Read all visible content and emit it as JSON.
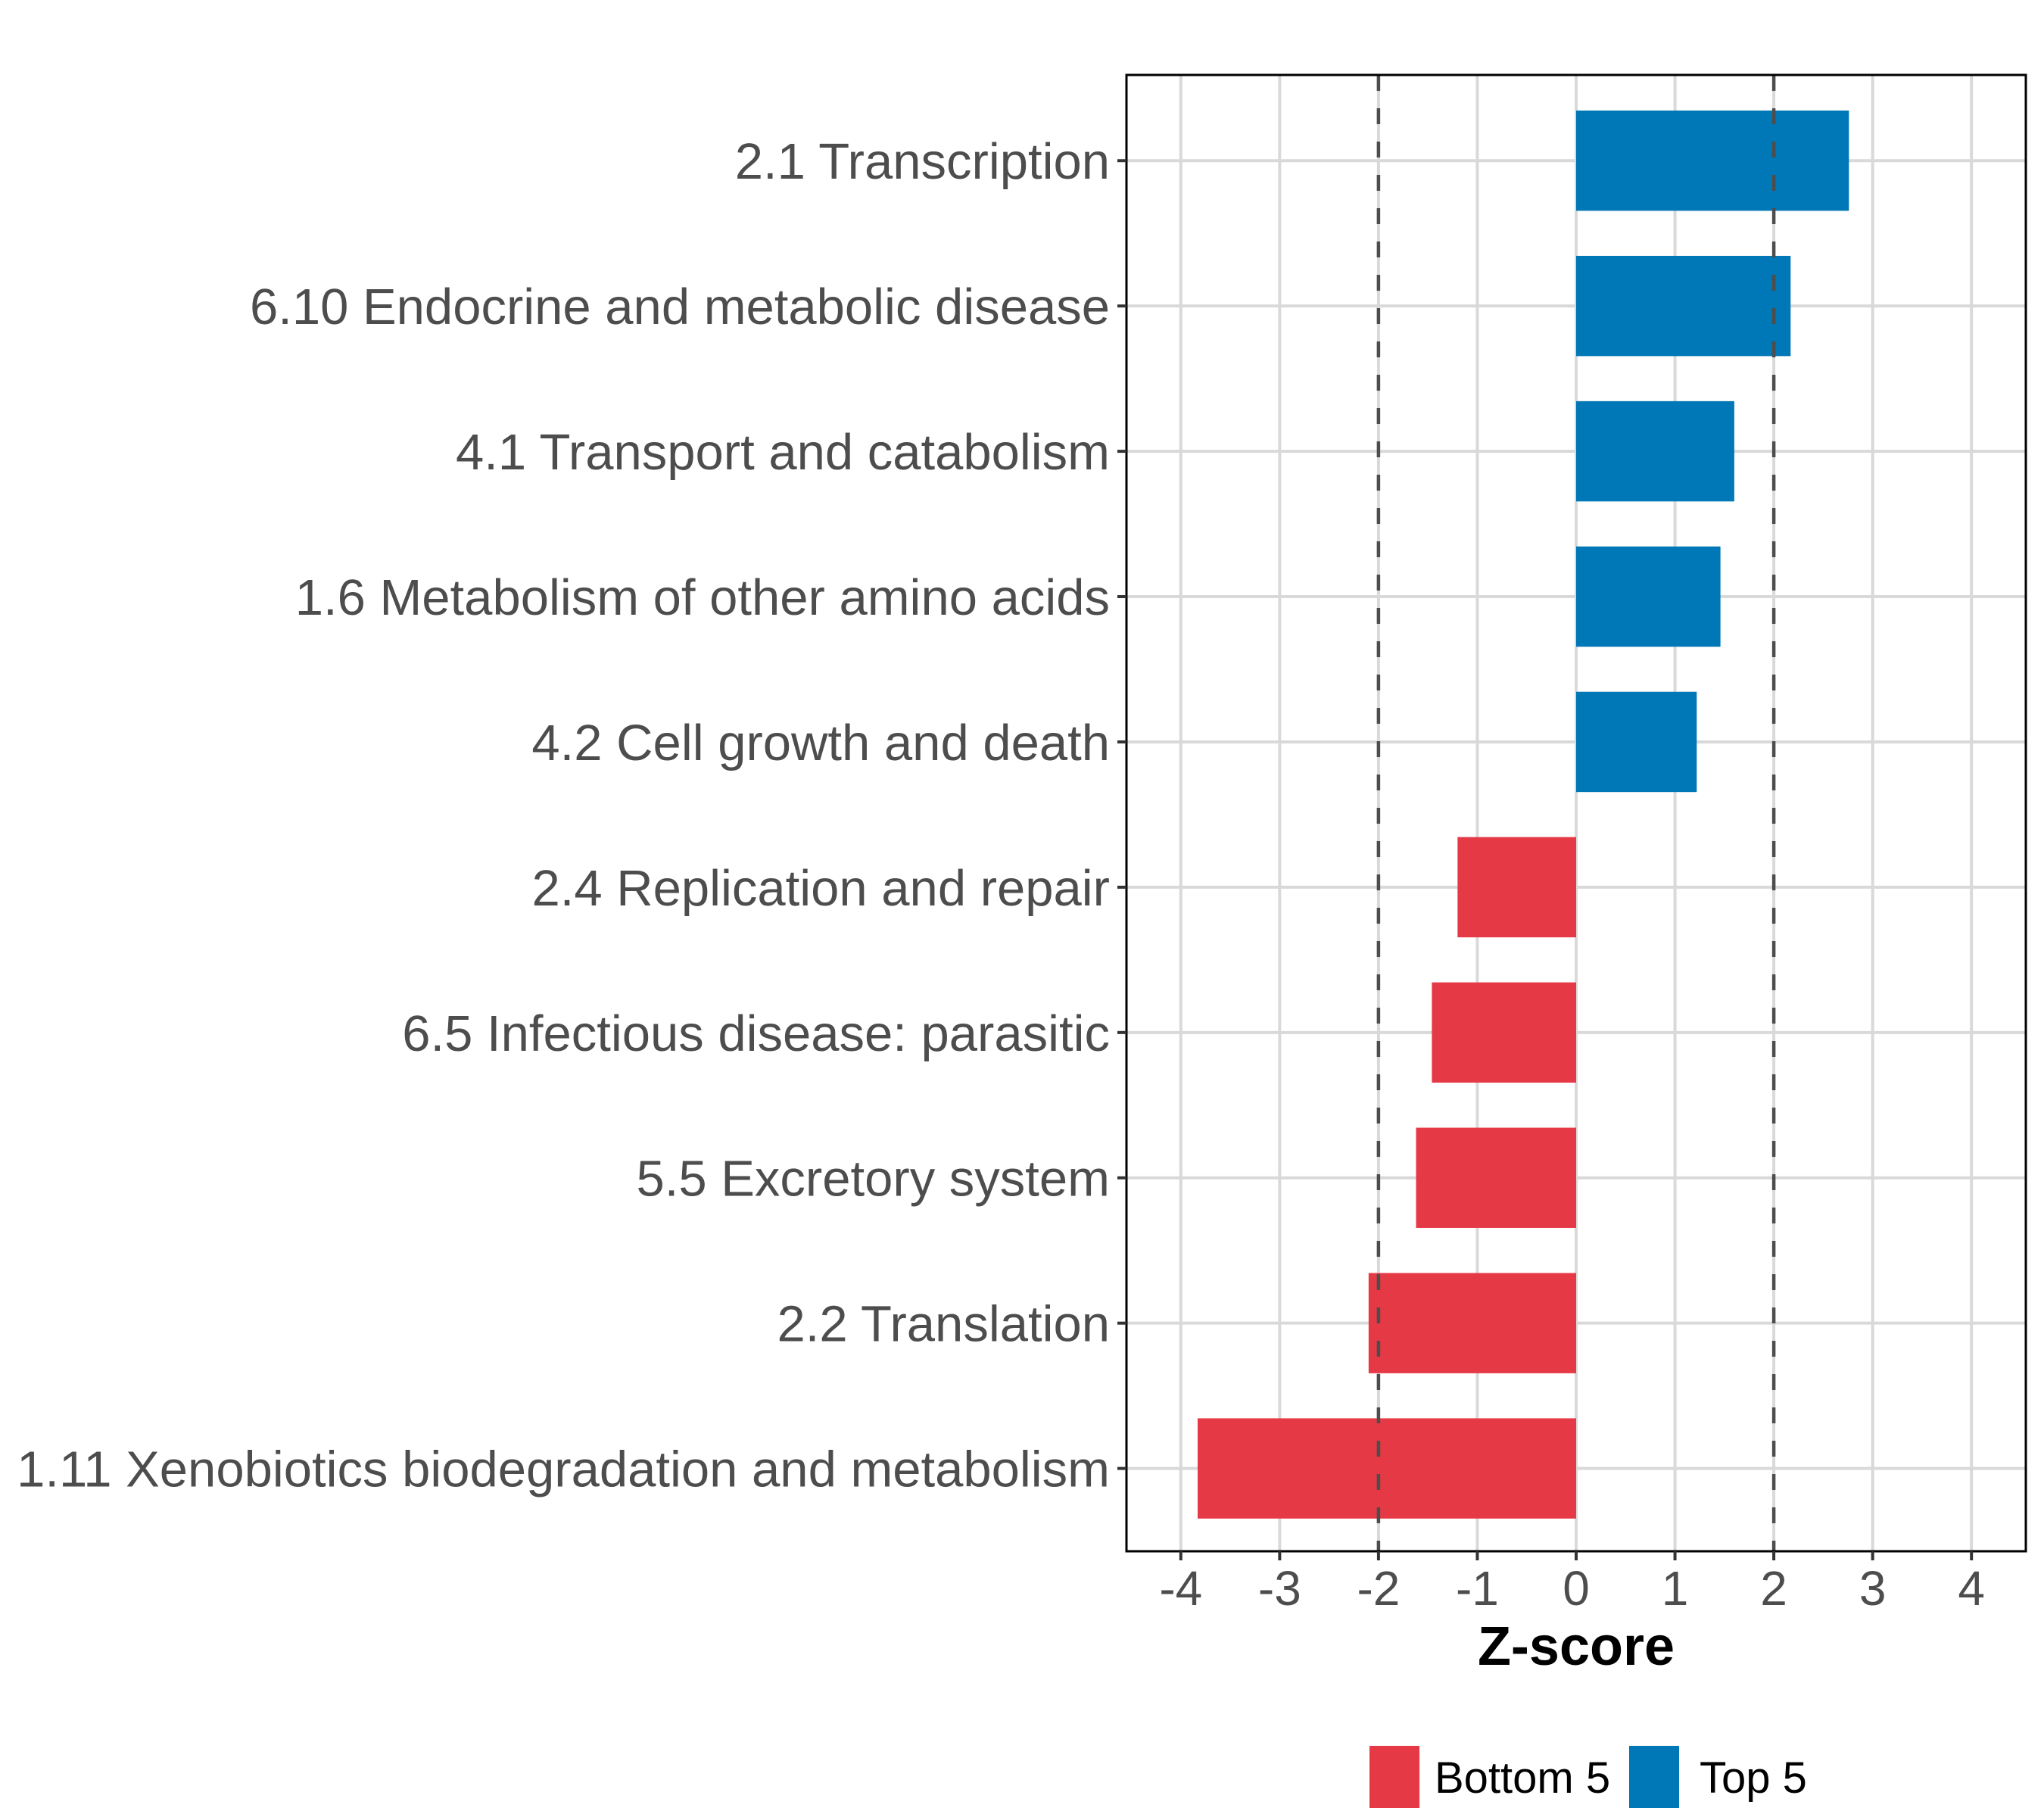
{
  "chart_data": {
    "type": "bar",
    "orientation": "horizontal",
    "title": "",
    "xlabel": "Z-score",
    "ylabel": "",
    "xlim": [
      -4.55,
      4.55
    ],
    "x_ticks": [
      -4,
      -3,
      -2,
      -1,
      0,
      1,
      2,
      3,
      4
    ],
    "x_tick_labels": [
      "-4",
      "-3",
      "-2",
      "-1",
      "0",
      "1",
      "2",
      "3",
      "4"
    ],
    "grid": true,
    "reference_lines": [
      -2,
      2
    ],
    "categories": [
      "2.1 Transcription",
      "6.10 Endocrine and metabolic disease",
      "4.1 Transport and catabolism",
      "1.6 Metabolism of other amino acids",
      "4.2 Cell growth and death",
      "2.4 Replication and repair",
      "6.5 Infectious disease: parasitic",
      "5.5 Excretory system",
      "2.2 Translation",
      "1.11 Xenobiotics biodegradation and metabolism"
    ],
    "values": [
      2.76,
      2.17,
      1.6,
      1.46,
      1.22,
      -1.2,
      -1.46,
      -1.62,
      -2.1,
      -3.83
    ],
    "groups": [
      "Top 5",
      "Top 5",
      "Top 5",
      "Top 5",
      "Top 5",
      "Bottom 5",
      "Bottom 5",
      "Bottom 5",
      "Bottom 5",
      "Bottom 5"
    ],
    "legend": {
      "placement": "bottom",
      "entries": [
        {
          "label": "Bottom 5",
          "color": "#e63946"
        },
        {
          "label": "Top 5",
          "color": "#0077b6"
        }
      ]
    },
    "colors": {
      "Bottom 5": "#e63946",
      "Top 5": "#0077b6",
      "grid": "#d9d9d9",
      "reference_line": "#4d4d4d",
      "axis_text": "#4d4d4d"
    }
  }
}
